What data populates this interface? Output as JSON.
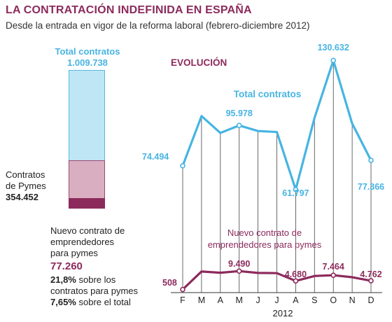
{
  "header": {
    "title": "LA CONTRATACIÓN INDEFINIDA EN ESPAÑA",
    "subtitle": "Desde la entrada en vigor de la reforma laboral (febrero-diciembre 2012)"
  },
  "stack": {
    "total_label": "Total contratos",
    "total_value": "1.009.738",
    "pymes_label_1": "Contratos",
    "pymes_label_2": "de Pymes",
    "pymes_value": "354.452",
    "emp_label_1": "Nuevo contrato de",
    "emp_label_2": "emprendedores",
    "emp_label_3": "para pymes",
    "emp_value": "77.260",
    "emp_pct_pymes_1": "21,8%",
    "emp_pct_pymes_text_1": " sobre los",
    "emp_pct_pymes_2": "contratos para pymes",
    "emp_pct_total": "7,65%",
    "emp_pct_total_text": " sobre el total"
  },
  "colors": {
    "total": "#47b4e2",
    "emprendedores": "#8c2a5c",
    "pymes": "#d9aec1",
    "total_bar": "#bfe6f5"
  },
  "chart_data": {
    "type": "line",
    "title": "EVOLUCIÓN",
    "xlabel": "2012",
    "categories": [
      "F",
      "M",
      "A",
      "M",
      "J",
      "J",
      "A",
      "S",
      "O",
      "N",
      "D"
    ],
    "series": [
      {
        "name": "Total contratos",
        "values": [
          74494,
          101000,
          92000,
          95978,
          93000,
          92500,
          61797,
          100000,
          130632,
          97000,
          77366
        ]
      },
      {
        "name": "Nuevo contrato de emprendedores para pymes",
        "values": [
          508,
          9300,
          8700,
          9490,
          8600,
          8500,
          4680,
          7100,
          7464,
          6500,
          4762
        ]
      }
    ],
    "labeled_points": {
      "total": [
        {
          "index": 0,
          "label": "74.494"
        },
        {
          "index": 3,
          "label": "95.978"
        },
        {
          "index": 6,
          "label": "61.797"
        },
        {
          "index": 8,
          "label": "130.632"
        },
        {
          "index": 10,
          "label": "77.366"
        }
      ],
      "emprendedores": [
        {
          "index": 0,
          "label": "508"
        },
        {
          "index": 3,
          "label": "9.490"
        },
        {
          "index": 6,
          "label": "4.680"
        },
        {
          "index": 8,
          "label": "7.464"
        },
        {
          "index": 10,
          "label": "4.762"
        }
      ]
    },
    "emp_series_label_1": "Nuevo contrato de",
    "emp_series_label_2": "emprendedores para pymes"
  }
}
